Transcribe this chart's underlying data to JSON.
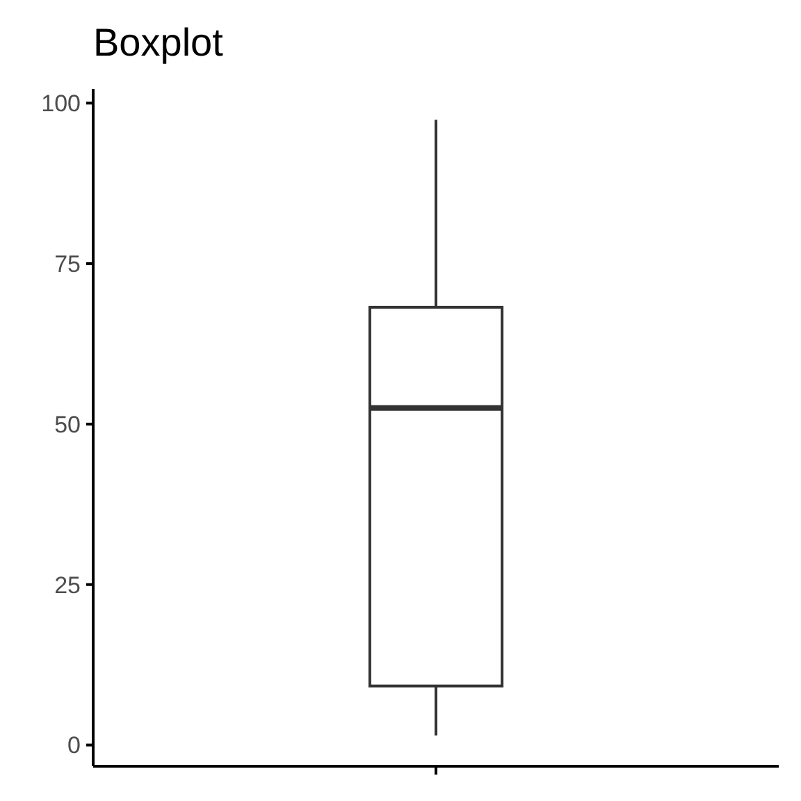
{
  "chart_data": {
    "type": "box",
    "title": "Boxplot",
    "categories": [
      null
    ],
    "boxes": [
      {
        "low": 1.5,
        "q1": 9.2,
        "median": 52.5,
        "q3": 68.2,
        "high": 97.4
      }
    ],
    "ylim": [
      -3.3,
      102.2
    ],
    "yticks": [
      0,
      25,
      50,
      75,
      100
    ],
    "grid": false,
    "color": "#333333"
  }
}
